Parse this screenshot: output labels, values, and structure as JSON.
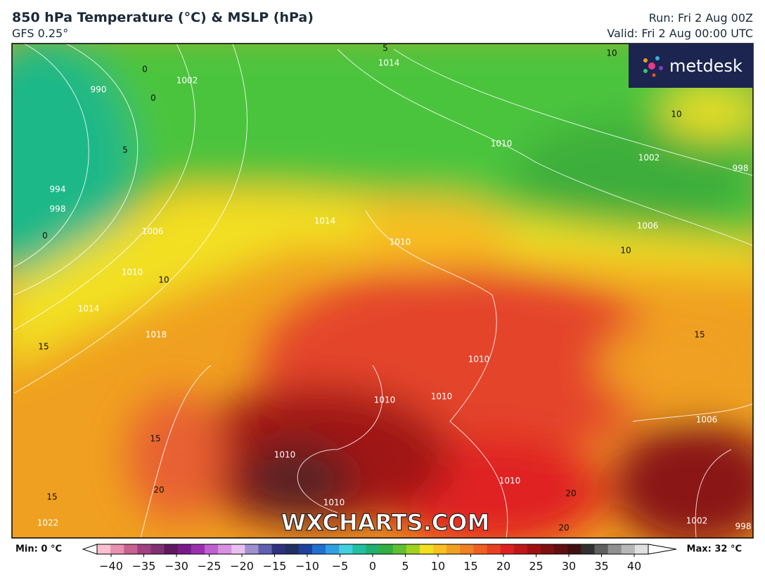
{
  "header": {
    "title": "850 hPa Temperature (°C) & MSLP (hPa)",
    "model": "GFS 0.25°",
    "run": "Run: Fri 2 Aug 00Z",
    "valid": "Valid: Fri 2 Aug 00:00 UTC"
  },
  "logo": "metdesk",
  "watermark": "WXCHARTS.COM",
  "legend": {
    "min": "Min: 0 °C",
    "max": "Max: 32 °C",
    "ticks": [
      "−40",
      "−35",
      "−30",
      "−25",
      "−20",
      "−15",
      "−10",
      "−5",
      "0",
      "5",
      "10",
      "15",
      "20",
      "25",
      "30",
      "35",
      "40"
    ]
  },
  "map_labels": [
    "990",
    "994",
    "998",
    "1002",
    "1006",
    "1010",
    "1014",
    "1018",
    "1022",
    "1014",
    "1014",
    "1010",
    "1010",
    "1002",
    "998",
    "1006",
    "1006",
    "1010",
    "1010",
    "1010",
    "1010",
    "1010",
    "1010",
    "1002",
    "998",
    "10",
    "10",
    "10",
    "10",
    "15",
    "15",
    "15",
    "15",
    "20",
    "20",
    "20",
    "5",
    "5",
    "0",
    "0",
    "0"
  ]
}
